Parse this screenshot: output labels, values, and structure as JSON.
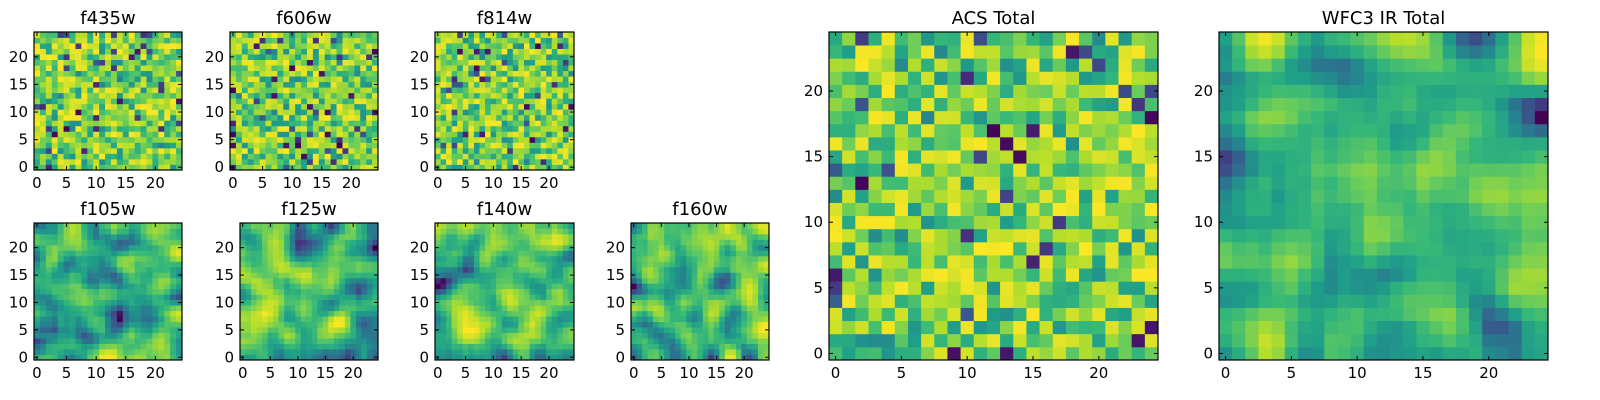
{
  "chart_data": [
    {
      "type": "heatmap",
      "title": "f435w",
      "xlim": [
        -0.5,
        24.5
      ],
      "ylim": [
        -0.5,
        24.5
      ],
      "x_ticks": [
        "0",
        "5",
        "10",
        "15",
        "20"
      ],
      "y_ticks": [
        "0",
        "5",
        "10",
        "15",
        "20"
      ],
      "colormap": "viridis",
      "texture": "noise",
      "seed": 11
    },
    {
      "type": "heatmap",
      "title": "f606w",
      "xlim": [
        -0.5,
        24.5
      ],
      "ylim": [
        -0.5,
        24.5
      ],
      "x_ticks": [
        "0",
        "5",
        "10",
        "15",
        "20"
      ],
      "y_ticks": [
        "0",
        "5",
        "10",
        "15",
        "20"
      ],
      "colormap": "viridis",
      "texture": "noise",
      "seed": 23
    },
    {
      "type": "heatmap",
      "title": "f814w",
      "xlim": [
        -0.5,
        24.5
      ],
      "ylim": [
        -0.5,
        24.5
      ],
      "x_ticks": [
        "0",
        "5",
        "10",
        "15",
        "20"
      ],
      "y_ticks": [
        "0",
        "5",
        "10",
        "15",
        "20"
      ],
      "colormap": "viridis",
      "texture": "noise",
      "seed": 37
    },
    {
      "type": "heatmap",
      "title": "f105w",
      "xlim": [
        -0.5,
        24.5
      ],
      "ylim": [
        -0.5,
        24.5
      ],
      "x_ticks": [
        "0",
        "5",
        "10",
        "15",
        "20"
      ],
      "y_ticks": [
        "0",
        "5",
        "10",
        "15",
        "20"
      ],
      "colormap": "viridis",
      "texture": "smooth",
      "seed": 41
    },
    {
      "type": "heatmap",
      "title": "f125w",
      "xlim": [
        -0.5,
        24.5
      ],
      "ylim": [
        -0.5,
        24.5
      ],
      "x_ticks": [
        "0",
        "5",
        "10",
        "15",
        "20"
      ],
      "y_ticks": [
        "0",
        "5",
        "10",
        "15",
        "20"
      ],
      "colormap": "viridis",
      "texture": "smooth",
      "seed": 53
    },
    {
      "type": "heatmap",
      "title": "f140w",
      "xlim": [
        -0.5,
        24.5
      ],
      "ylim": [
        -0.5,
        24.5
      ],
      "x_ticks": [
        "0",
        "5",
        "10",
        "15",
        "20"
      ],
      "y_ticks": [
        "0",
        "5",
        "10",
        "15",
        "20"
      ],
      "colormap": "viridis",
      "texture": "smooth",
      "seed": 67
    },
    {
      "type": "heatmap",
      "title": "f160w",
      "xlim": [
        -0.5,
        24.5
      ],
      "ylim": [
        -0.5,
        24.5
      ],
      "x_ticks": [
        "0",
        "5",
        "10",
        "15",
        "20"
      ],
      "y_ticks": [
        "0",
        "5",
        "10",
        "15",
        "20"
      ],
      "colormap": "viridis",
      "texture": "smooth",
      "seed": 79
    },
    {
      "type": "heatmap",
      "title": "ACS Total",
      "xlim": [
        -0.5,
        24.5
      ],
      "ylim": [
        -0.5,
        24.5
      ],
      "x_ticks": [
        "0",
        "5",
        "10",
        "15",
        "20"
      ],
      "y_ticks": [
        "0",
        "5",
        "10",
        "15",
        "20"
      ],
      "colormap": "viridis",
      "texture": "noise",
      "seed": 97
    },
    {
      "type": "heatmap",
      "title": "WFC3 IR Total",
      "xlim": [
        -0.5,
        24.5
      ],
      "ylim": [
        -0.5,
        24.5
      ],
      "x_ticks": [
        "0",
        "5",
        "10",
        "15",
        "20"
      ],
      "y_ticks": [
        "0",
        "5",
        "10",
        "15",
        "20"
      ],
      "colormap": "viridis",
      "texture": "smooth",
      "seed": 113
    }
  ]
}
